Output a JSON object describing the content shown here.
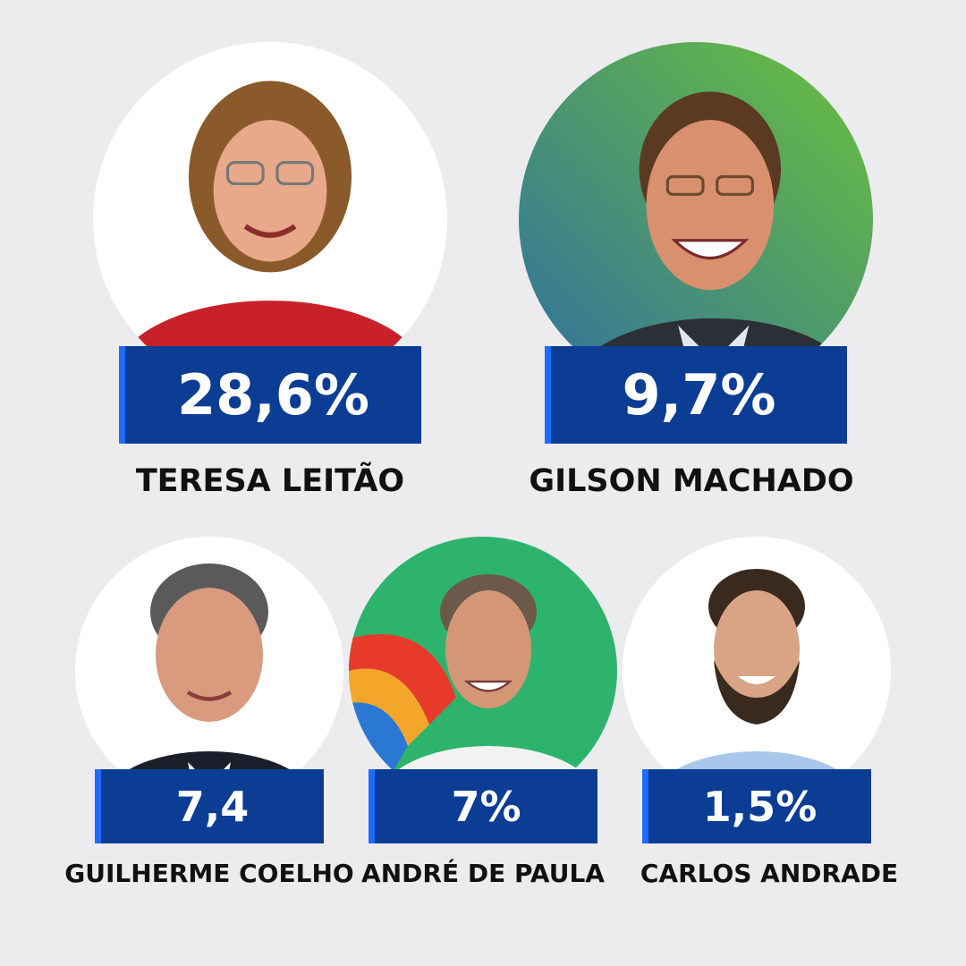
{
  "candidates": [
    {
      "name": "TERESA LEITÃO",
      "value": "28,6%",
      "photo_bg": "#ffffff",
      "clothing": "#c8212a",
      "hair": "#8a5a2b",
      "skin": "#e8a98a"
    },
    {
      "name": "GILSON MACHADO",
      "value": "9,7%",
      "photo_bg": "#4aa35a",
      "clothing": "#2d2f36",
      "hair": "#5b3a22",
      "skin": "#d9906e"
    },
    {
      "name": "GUILHERME COELHO",
      "value": "7,4",
      "photo_bg": "#ffffff",
      "clothing": "#1c1f2b",
      "hair": "#5a5a5a",
      "skin": "#d99a7e"
    },
    {
      "name": "ANDRÉ DE PAULA",
      "value": "7%",
      "photo_bg": "#2eb36d",
      "clothing": "#f2f2f2",
      "hair": "#6b5a4a",
      "skin": "#d49775"
    },
    {
      "name": "CARLOS ANDRADE",
      "value": "1,5%",
      "photo_bg": "#ffffff",
      "clothing": "#a9c7ea",
      "hair": "#3a2a1e",
      "skin": "#d8a485"
    }
  ],
  "colors": {
    "box": "#0b3d94",
    "box_accent": "#1e6bff",
    "background": "#ececef"
  }
}
